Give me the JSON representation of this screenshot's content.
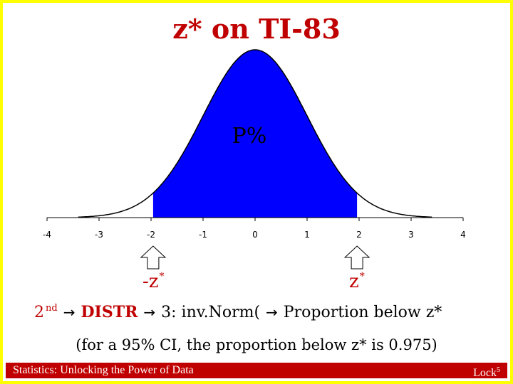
{
  "title": "z* on TI-83",
  "curve": {
    "x_range": [
      -4,
      4
    ],
    "x_ticks": [
      "-4",
      "-3",
      "-2",
      "-1",
      "0",
      "1",
      "2",
      "3",
      "4"
    ],
    "shaded_from": -1.96,
    "shaded_to": 1.96,
    "shade_color": "#0000ff",
    "curve_color": "#000000"
  },
  "p_label": "P%",
  "z_neg": {
    "text": "-z",
    "sup": "*"
  },
  "z_pos": {
    "text": "z",
    "sup": "*"
  },
  "instruction": {
    "key": "2",
    "key_sup": "nd",
    "arrow1": "→",
    "distr": "DISTR",
    "arrow2": "→",
    "menu": "3: inv.Norm(",
    "arrow3": "→",
    "result": "Proportion below z*"
  },
  "note": "(for a 95% CI, the proportion below z* is 0.975)",
  "footer": {
    "left": "Statistics: Unlocking the Power of Data",
    "right": "Lock",
    "right_sup": "5"
  },
  "colors": {
    "accent_red": "#c00000",
    "border_yellow": "#ffff00",
    "footer_bg": "#c00000"
  }
}
